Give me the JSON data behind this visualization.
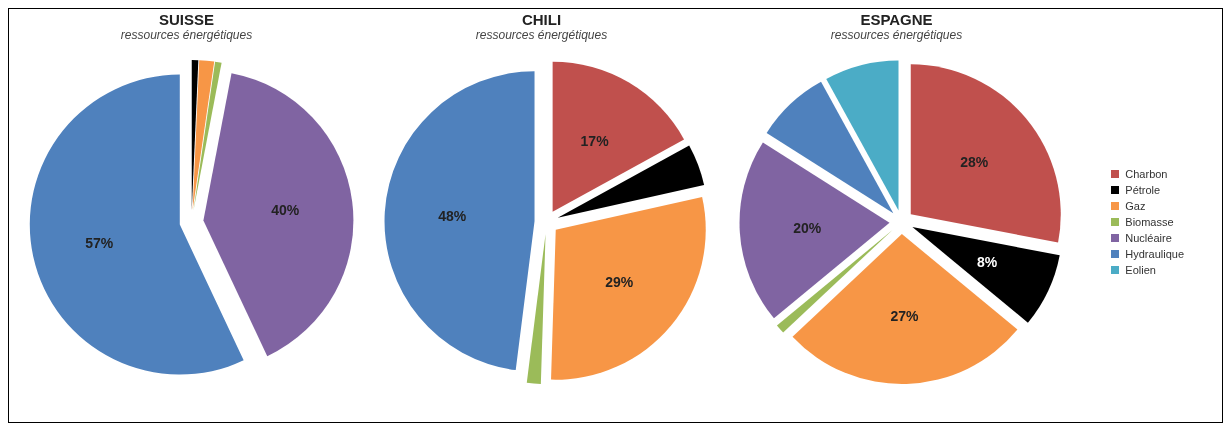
{
  "chart_data": [
    {
      "type": "pie",
      "title": "SUISSE",
      "subtitle": "ressources énergétiques",
      "categories": [
        null,
        null,
        null,
        null,
        null
      ],
      "values": [
        0.7,
        1.6,
        0.7,
        40,
        57
      ],
      "colors": [
        "#000000",
        "#f79646",
        "#9bbb59",
        "#8064a2",
        "#4f81bd"
      ],
      "value_labels": [
        null,
        null,
        null,
        "40%",
        "57%"
      ]
    },
    {
      "type": "pie",
      "title": "CHILI",
      "subtitle": "ressources énergétiques",
      "categories": [
        null,
        null,
        null,
        null,
        null
      ],
      "values": [
        17,
        4.5,
        29,
        1.5,
        48
      ],
      "colors": [
        "#c0504d",
        "#000000",
        "#f79646",
        "#9bbb59",
        "#4f81bd"
      ],
      "value_labels": [
        "17%",
        null,
        "29%",
        null,
        "48%"
      ]
    },
    {
      "type": "pie",
      "title": "ESPAGNE",
      "subtitle": "ressources énergétiques",
      "categories": [
        "Charbon",
        "Pétrole",
        "Gaz",
        "Biomasse",
        "Nucléaire",
        "Hydraulique",
        "Eolien"
      ],
      "values": [
        28,
        8,
        27,
        1,
        20,
        8,
        8
      ],
      "colors": [
        "#c0504d",
        "#000000",
        "#f79646",
        "#9bbb59",
        "#8064a2",
        "#4f81bd",
        "#4bacc6"
      ],
      "value_labels": [
        "28%",
        "8%",
        "27%",
        null,
        "20%",
        null,
        null
      ],
      "legend": "right"
    }
  ]
}
